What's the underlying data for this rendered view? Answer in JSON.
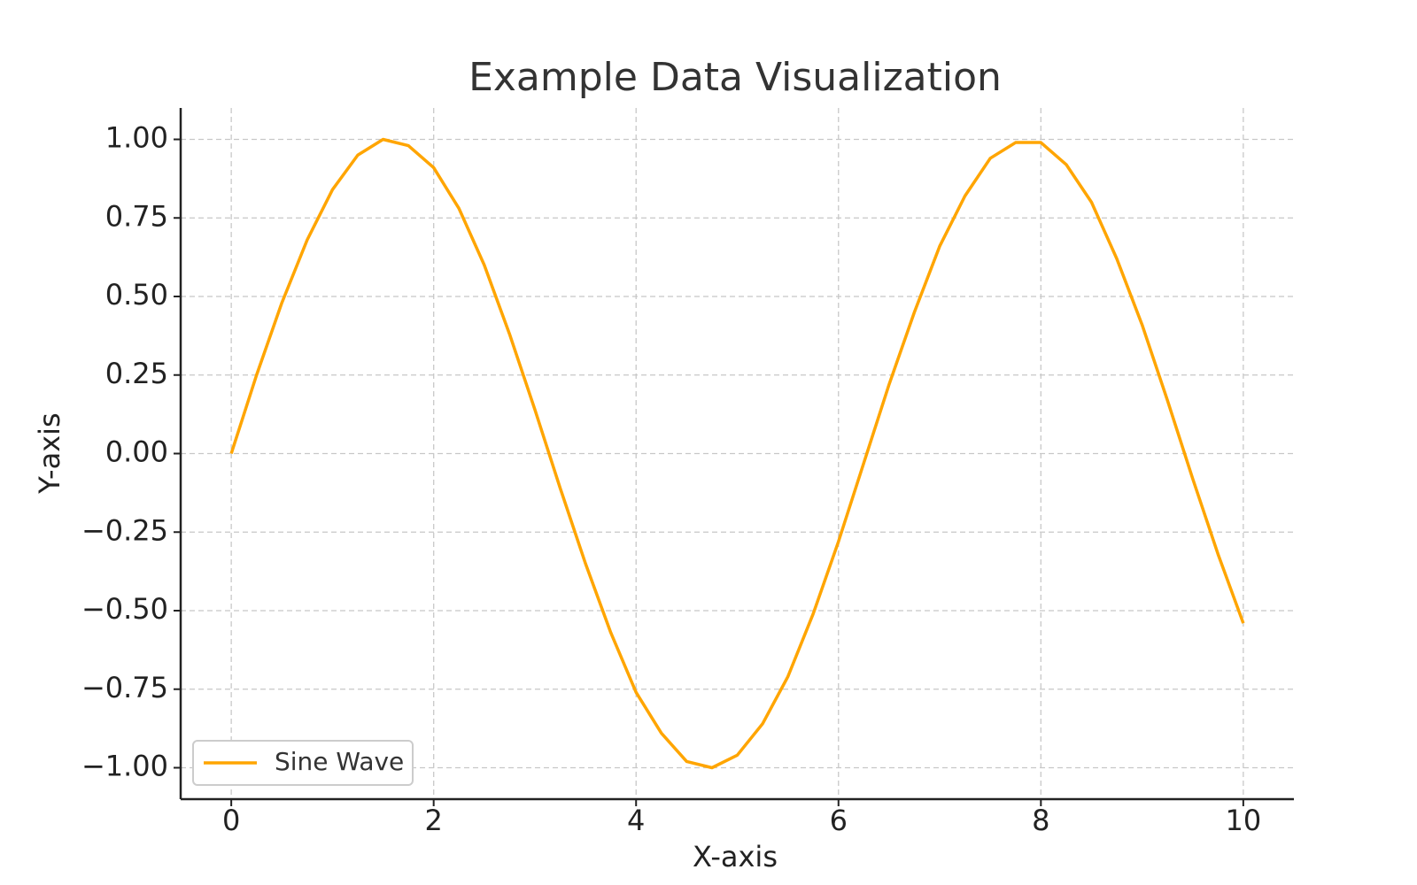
{
  "chart_data": {
    "type": "line",
    "title": "Example Data Visualization",
    "x_label": "X-axis",
    "y_label": "Y-axis",
    "x": [
      0,
      0.25,
      0.5,
      0.75,
      1,
      1.25,
      1.5,
      1.75,
      2,
      2.25,
      2.5,
      2.75,
      3,
      3.25,
      3.5,
      3.75,
      4,
      4.25,
      4.5,
      4.75,
      5,
      5.25,
      5.5,
      5.75,
      6,
      6.25,
      6.5,
      6.75,
      7,
      7.25,
      7.5,
      7.75,
      8,
      8.25,
      8.5,
      8.75,
      9,
      9.25,
      9.5,
      9.75,
      10
    ],
    "series": [
      {
        "name": "Sine Wave",
        "color": "#FFA500",
        "values": [
          0,
          0.25,
          0.48,
          0.68,
          0.84,
          0.95,
          1.0,
          0.98,
          0.91,
          0.78,
          0.6,
          0.38,
          0.14,
          -0.11,
          -0.35,
          -0.57,
          -0.76,
          -0.89,
          -0.98,
          -1.0,
          -0.96,
          -0.86,
          -0.71,
          -0.51,
          -0.28,
          -0.03,
          0.22,
          0.45,
          0.66,
          0.82,
          0.94,
          0.99,
          0.99,
          0.92,
          0.8,
          0.62,
          0.41,
          0.17,
          -0.08,
          -0.32,
          -0.54
        ]
      }
    ],
    "xlim": [
      -0.5,
      10.5
    ],
    "ylim": [
      -1.1,
      1.1
    ],
    "xticks": [
      0,
      2,
      4,
      6,
      8,
      10
    ],
    "yticks": [
      {
        "value": -1,
        "label": "−1.00"
      },
      {
        "value": -0.75,
        "label": "−0.75"
      },
      {
        "value": -0.5,
        "label": "−0.50"
      },
      {
        "value": -0.25,
        "label": "−0.25"
      },
      {
        "value": 0,
        "label": "0.00"
      },
      {
        "value": 0.25,
        "label": "0.25"
      },
      {
        "value": 0.5,
        "label": "0.50"
      },
      {
        "value": 0.75,
        "label": "0.75"
      },
      {
        "value": 1,
        "label": "1.00"
      }
    ],
    "grid": true,
    "legend": "lower-left"
  }
}
